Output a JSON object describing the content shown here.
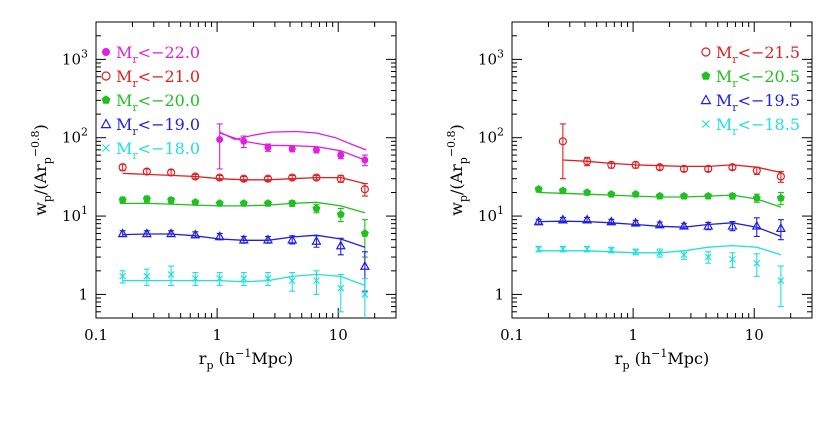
{
  "chart_data": [
    {
      "type": "scatter",
      "title": "",
      "xlabel": "r_p (h^-1Mpc)",
      "ylabel": "w_p/(Ar_p^-0.8)",
      "xscale": "log",
      "yscale": "log",
      "xlim": [
        0.1,
        30
      ],
      "ylim": [
        0.5,
        3000
      ],
      "x_ticklabels": [
        {
          "value": 0.1,
          "label": "0.1"
        },
        {
          "value": 1,
          "label": "1"
        },
        {
          "value": 10,
          "label": "10"
        }
      ],
      "y_ticklabels": [
        {
          "value": 1,
          "label": "1",
          "exp": ""
        },
        {
          "value": 10,
          "label": "10",
          "exp": "1"
        },
        {
          "value": 100,
          "label": "10",
          "exp": "2"
        },
        {
          "value": 1000,
          "label": "10",
          "exp": "3"
        }
      ],
      "legend_position": "top-left",
      "series": [
        {
          "name": "Mr<-22.0",
          "label_base": "M",
          "label_sub": "r",
          "label_rest": "<−22.0",
          "color": "#e020e0",
          "marker": "filled-circle",
          "x": [
            1.05,
            1.66,
            2.63,
            4.17,
            6.61,
            10.5,
            16.6
          ],
          "y": [
            95,
            90,
            75,
            72,
            70,
            60,
            52
          ],
          "yerr": [
            55,
            15,
            8,
            6,
            6,
            6,
            8
          ],
          "model": [
            [
              1.05,
              115
            ],
            [
              1.66,
              90
            ],
            [
              2.63,
              80
            ],
            [
              4.17,
              79
            ],
            [
              6.61,
              77
            ],
            [
              10.5,
              68
            ],
            [
              16.6,
              52
            ]
          ],
          "model2": [
            [
              1.05,
              118
            ],
            [
              1.4,
              95
            ],
            [
              2.0,
              108
            ],
            [
              2.8,
              118
            ],
            [
              4.5,
              120
            ],
            [
              6.6,
              115
            ],
            [
              9.5,
              100
            ],
            [
              13,
              82
            ],
            [
              17,
              70
            ]
          ]
        },
        {
          "name": "Mr<-21.0",
          "label_base": "M",
          "label_sub": "r",
          "label_rest": "<−21.0",
          "color": "#e02020",
          "marker": "open-circle",
          "x": [
            0.166,
            0.263,
            0.417,
            0.661,
            1.05,
            1.66,
            2.63,
            4.17,
            6.61,
            10.5,
            16.6
          ],
          "y": [
            42,
            37,
            36,
            32,
            31,
            30,
            30,
            31,
            31,
            30,
            22
          ],
          "yerr": [
            4,
            3,
            3,
            2,
            2,
            2,
            2,
            2,
            2,
            3,
            4
          ],
          "model": [
            [
              0.166,
              35
            ],
            [
              0.263,
              34
            ],
            [
              0.417,
              33
            ],
            [
              0.661,
              32
            ],
            [
              1.05,
              30
            ],
            [
              1.66,
              29
            ],
            [
              2.63,
              29
            ],
            [
              4.17,
              30
            ],
            [
              6.61,
              31
            ],
            [
              10.5,
              31
            ],
            [
              16.6,
              26
            ]
          ]
        },
        {
          "name": "Mr<-20.0",
          "label_base": "M",
          "label_sub": "r",
          "label_rest": "<−20.0",
          "color": "#20c020",
          "marker": "filled-pentagon",
          "x": [
            0.166,
            0.263,
            0.417,
            0.661,
            1.05,
            1.66,
            2.63,
            4.17,
            6.61,
            10.5,
            16.6
          ],
          "y": [
            16,
            16.5,
            16,
            15,
            14.5,
            14.5,
            14.5,
            14.5,
            12.5,
            10.5,
            6
          ],
          "yerr": [
            1.5,
            1.5,
            1.2,
            1,
            1,
            1,
            1,
            1.2,
            1.5,
            2,
            3
          ],
          "model": [
            [
              0.166,
              14.5
            ],
            [
              0.263,
              14.5
            ],
            [
              0.417,
              14.2
            ],
            [
              0.661,
              13.8
            ],
            [
              1.05,
              13.5
            ],
            [
              1.66,
              13.5
            ],
            [
              2.63,
              13.8
            ],
            [
              4.17,
              14.5
            ],
            [
              6.61,
              15
            ],
            [
              10.5,
              13.5
            ],
            [
              16.6,
              11
            ]
          ]
        },
        {
          "name": "Mr<-19.0",
          "label_base": "M",
          "label_sub": "r",
          "label_rest": "<−19.0",
          "color": "#2020e0",
          "marker": "open-triangle",
          "x": [
            0.166,
            0.263,
            0.417,
            0.661,
            1.05,
            1.66,
            2.63,
            4.17,
            6.61,
            10.5,
            16.6
          ],
          "y": [
            6,
            6,
            6,
            5.8,
            5.5,
            5,
            5,
            5,
            4.8,
            4.2,
            2.3
          ],
          "yerr": [
            0.5,
            0.5,
            0.5,
            0.5,
            0.5,
            0.5,
            0.5,
            0.6,
            0.8,
            1,
            1.2
          ],
          "model": [
            [
              0.166,
              5.8
            ],
            [
              0.263,
              5.9
            ],
            [
              0.417,
              5.9
            ],
            [
              0.661,
              5.6
            ],
            [
              1.05,
              5.1
            ],
            [
              1.66,
              4.9
            ],
            [
              2.63,
              4.9
            ],
            [
              4.17,
              5.4
            ],
            [
              6.61,
              5.7
            ],
            [
              10.5,
              5.1
            ],
            [
              16.6,
              4.0
            ]
          ]
        },
        {
          "name": "Mr<-18.0",
          "label_base": "M",
          "label_sub": "r",
          "label_rest": "<−18.0",
          "color": "#20e0e0",
          "marker": "cross",
          "x": [
            0.166,
            0.263,
            0.417,
            0.661,
            1.05,
            1.66,
            2.63,
            4.17,
            6.61,
            10.5,
            16.6
          ],
          "y": [
            1.7,
            1.7,
            1.8,
            1.6,
            1.6,
            1.6,
            1.6,
            1.5,
            1.5,
            1.2,
            1.0
          ],
          "yerr": [
            0.3,
            0.4,
            0.5,
            0.3,
            0.3,
            0.3,
            0.3,
            0.4,
            0.5,
            0.6,
            0.6
          ],
          "model": [
            [
              0.166,
              1.5
            ],
            [
              0.263,
              1.5
            ],
            [
              0.417,
              1.5
            ],
            [
              0.661,
              1.5
            ],
            [
              1.05,
              1.5
            ],
            [
              1.66,
              1.45
            ],
            [
              2.63,
              1.5
            ],
            [
              4.17,
              1.7
            ],
            [
              6.61,
              1.8
            ],
            [
              10.5,
              1.7
            ],
            [
              16.6,
              1.3
            ]
          ]
        }
      ]
    },
    {
      "type": "scatter",
      "title": "",
      "xlabel": "r_p (h^-1Mpc)",
      "ylabel": "w_p/(Ar_p^-0.8)",
      "xscale": "log",
      "yscale": "log",
      "xlim": [
        0.1,
        30
      ],
      "ylim": [
        0.5,
        3000
      ],
      "x_ticklabels": [
        {
          "value": 0.1,
          "label": "0.1"
        },
        {
          "value": 1,
          "label": "1"
        },
        {
          "value": 10,
          "label": "10"
        }
      ],
      "y_ticklabels": [
        {
          "value": 1,
          "label": "1",
          "exp": ""
        },
        {
          "value": 10,
          "label": "10",
          "exp": "1"
        },
        {
          "value": 100,
          "label": "10",
          "exp": "2"
        },
        {
          "value": 1000,
          "label": "10",
          "exp": "3"
        }
      ],
      "legend_position": "top-right",
      "series": [
        {
          "name": "Mr<-21.5",
          "label_base": "M",
          "label_sub": "r",
          "label_rest": "<−21.5",
          "color": "#e02020",
          "marker": "open-circle",
          "x": [
            0.263,
            0.417,
            0.661,
            1.05,
            1.66,
            2.63,
            4.17,
            6.61,
            10.5,
            16.6
          ],
          "y": [
            90,
            50,
            45,
            45,
            42,
            40,
            40,
            42,
            38,
            32
          ],
          "yerr": [
            60,
            6,
            4,
            4,
            3,
            3,
            3,
            3,
            4,
            5
          ],
          "model": [
            [
              0.263,
              52
            ],
            [
              0.417,
              50
            ],
            [
              0.661,
              47
            ],
            [
              1.05,
              45
            ],
            [
              1.66,
              44
            ],
            [
              2.63,
              43
            ],
            [
              4.17,
              43
            ],
            [
              6.61,
              45
            ],
            [
              10.5,
              42
            ],
            [
              16.6,
              36
            ]
          ]
        },
        {
          "name": "Mr<-20.5",
          "label_base": "M",
          "label_sub": "r",
          "label_rest": "<−20.5",
          "color": "#20c020",
          "marker": "filled-pentagon",
          "x": [
            0.166,
            0.263,
            0.417,
            0.661,
            1.05,
            1.66,
            2.63,
            4.17,
            6.61,
            10.5,
            16.6
          ],
          "y": [
            22,
            21,
            20,
            19,
            19,
            18,
            18,
            18,
            18,
            17,
            17
          ],
          "yerr": [
            1.5,
            1.5,
            1.2,
            1.2,
            1.2,
            1.2,
            1.2,
            1.2,
            1.5,
            2,
            3
          ],
          "model": [
            [
              0.166,
              20
            ],
            [
              0.263,
              19.5
            ],
            [
              0.417,
              19
            ],
            [
              0.661,
              18.5
            ],
            [
              1.05,
              18
            ],
            [
              1.66,
              17.5
            ],
            [
              2.63,
              17.5
            ],
            [
              4.17,
              18
            ],
            [
              6.61,
              18.5
            ],
            [
              10.5,
              16.5
            ],
            [
              16.6,
              13
            ]
          ]
        },
        {
          "name": "Mr<-19.5",
          "label_base": "M",
          "label_sub": "r",
          "label_rest": "<−19.5",
          "color": "#2020e0",
          "marker": "open-triangle",
          "x": [
            0.166,
            0.263,
            0.417,
            0.661,
            1.05,
            1.66,
            2.63,
            4.17,
            6.61,
            10.5,
            16.6
          ],
          "y": [
            8.5,
            9,
            9,
            8.5,
            8.2,
            7.8,
            7.5,
            7.5,
            7.5,
            7.5,
            7
          ],
          "yerr": [
            0.6,
            0.6,
            0.6,
            0.6,
            0.6,
            0.6,
            0.6,
            0.8,
            1,
            2,
            2
          ],
          "model": [
            [
              0.166,
              8.5
            ],
            [
              0.263,
              8.6
            ],
            [
              0.417,
              8.5
            ],
            [
              0.661,
              8.2
            ],
            [
              1.05,
              7.8
            ],
            [
              1.66,
              7.4
            ],
            [
              2.63,
              7.2
            ],
            [
              4.17,
              7.8
            ],
            [
              6.61,
              8.2
            ],
            [
              10.5,
              7.2
            ],
            [
              16.6,
              5.5
            ]
          ]
        },
        {
          "name": "Mr<-18.5",
          "label_base": "M",
          "label_sub": "r",
          "label_rest": "<−18.5",
          "color": "#20e0e0",
          "marker": "cross",
          "x": [
            0.166,
            0.263,
            0.417,
            0.661,
            1.05,
            1.66,
            2.63,
            4.17,
            6.61,
            10.5,
            16.6
          ],
          "y": [
            3.8,
            3.8,
            3.8,
            3.7,
            3.5,
            3.4,
            3.2,
            3.0,
            2.8,
            2.5,
            1.5
          ],
          "yerr": [
            0.3,
            0.3,
            0.3,
            0.3,
            0.3,
            0.4,
            0.4,
            0.5,
            0.6,
            0.8,
            0.8
          ],
          "model": [
            [
              0.166,
              3.6
            ],
            [
              0.263,
              3.6
            ],
            [
              0.417,
              3.6
            ],
            [
              0.661,
              3.5
            ],
            [
              1.05,
              3.4
            ],
            [
              1.66,
              3.4
            ],
            [
              2.63,
              3.6
            ],
            [
              4.17,
              4.0
            ],
            [
              6.61,
              4.2
            ],
            [
              10.5,
              4.0
            ],
            [
              16.6,
              3.2
            ]
          ]
        }
      ]
    }
  ]
}
